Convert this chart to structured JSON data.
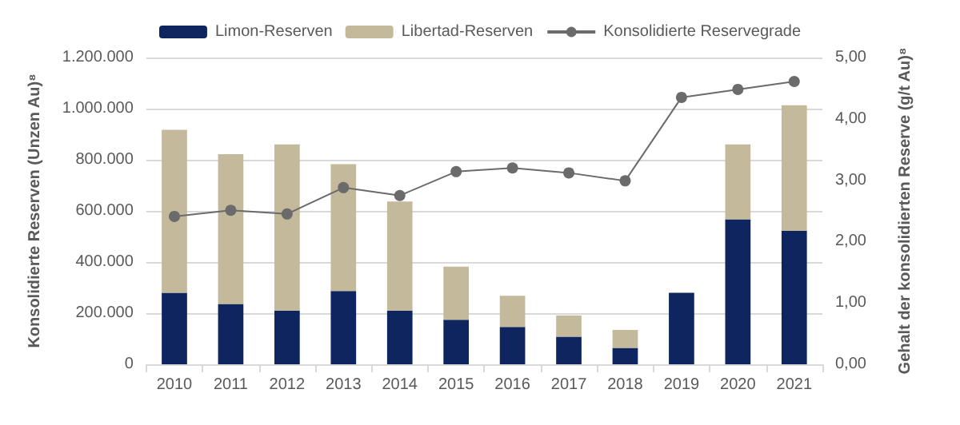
{
  "chart_data": {
    "type": "bar",
    "stacked": true,
    "categories": [
      "2010",
      "2011",
      "2012",
      "2013",
      "2014",
      "2015",
      "2016",
      "2017",
      "2018",
      "2019",
      "2020",
      "2021"
    ],
    "series": [
      {
        "name": "Limon-Reserven",
        "color": "#0f2560",
        "values": [
          280000,
          236000,
          210000,
          287000,
          210000,
          174000,
          146000,
          108000,
          64000,
          280000,
          567000,
          522000
        ]
      },
      {
        "name": "Libertad-Reserven",
        "color": "#c4b99a",
        "values": [
          637000,
          586000,
          650000,
          496000,
          427000,
          208000,
          122000,
          83000,
          70000,
          0,
          293000,
          491000
        ]
      },
      {
        "name": "Konsolidierte Reservegrade",
        "type": "line",
        "axis": "y2",
        "color": "#6b6b6b",
        "marker": "circle",
        "values": [
          2.41,
          2.51,
          2.45,
          2.88,
          2.75,
          3.14,
          3.2,
          3.12,
          2.99,
          4.35,
          4.48,
          4.61
        ]
      }
    ],
    "ylabel": "Konsolidierte Reserven (Unzen Au)⁸",
    "y2label": "Gehalt der konsolidierten Reserve (g/t Au)⁸",
    "ylim": [
      0,
      1200000
    ],
    "yticks": [
      {
        "value": 0,
        "label": "0"
      },
      {
        "value": 200000,
        "label": "200.000"
      },
      {
        "value": 400000,
        "label": "400.000"
      },
      {
        "value": 600000,
        "label": "600.000"
      },
      {
        "value": 800000,
        "label": "800.000"
      },
      {
        "value": 1000000,
        "label": "1.000.000"
      },
      {
        "value": 1200000,
        "label": "1.200.000"
      }
    ],
    "y2lim": [
      0,
      5
    ],
    "y2ticks": [
      {
        "value": 0,
        "label": "0,00"
      },
      {
        "value": 1,
        "label": "1,00"
      },
      {
        "value": 2,
        "label": "2,00"
      },
      {
        "value": 3,
        "label": "3,00"
      },
      {
        "value": 4,
        "label": "4,00"
      },
      {
        "value": 5,
        "label": "5,00"
      }
    ],
    "grid": "y",
    "legend": "top"
  }
}
